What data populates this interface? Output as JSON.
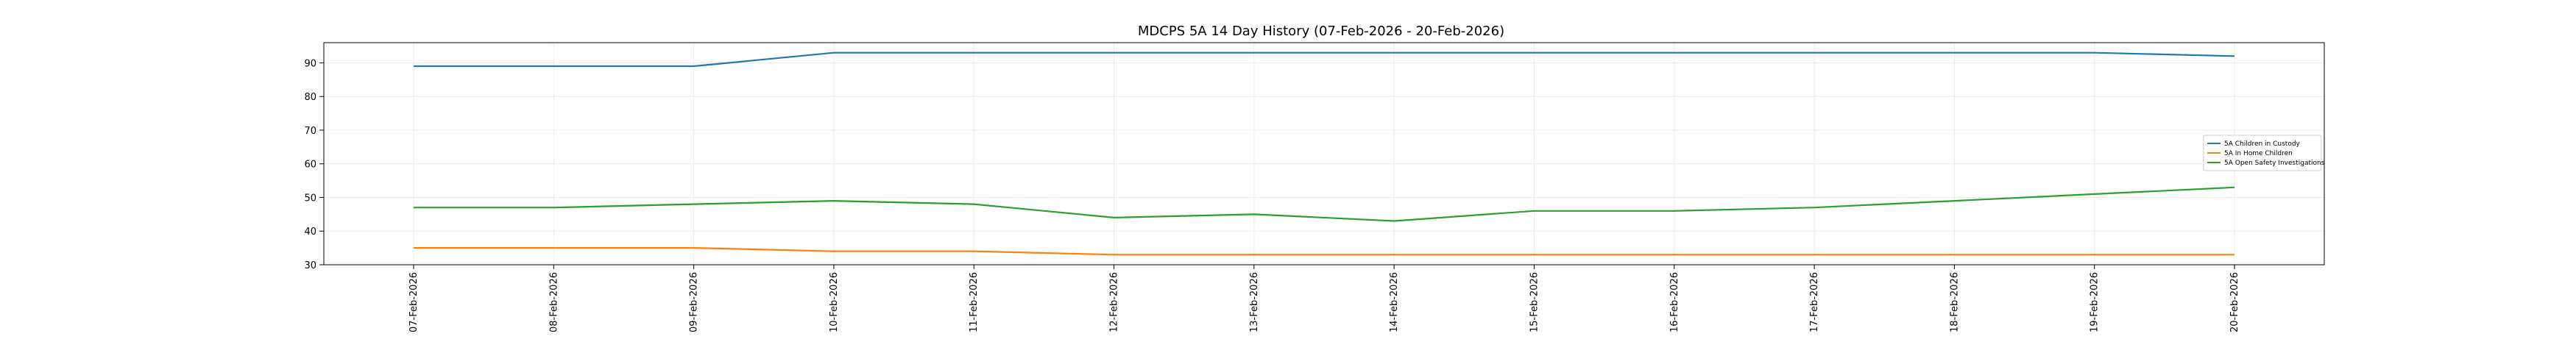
{
  "chart_data": {
    "type": "line",
    "title": "MDCPS 5A 14 Day History (07-Feb-2026 - 20-Feb-2026)",
    "xlabel": "",
    "ylabel": "",
    "categories": [
      "07-Feb-2026",
      "08-Feb-2026",
      "09-Feb-2026",
      "10-Feb-2026",
      "11-Feb-2026",
      "12-Feb-2026",
      "13-Feb-2026",
      "14-Feb-2026",
      "15-Feb-2026",
      "16-Feb-2026",
      "17-Feb-2026",
      "18-Feb-2026",
      "19-Feb-2026",
      "20-Feb-2026"
    ],
    "ylim": [
      30,
      96
    ],
    "yticks": [
      30,
      40,
      50,
      60,
      70,
      80,
      90
    ],
    "grid": true,
    "legend_position": "center-right",
    "series": [
      {
        "name": "5A Children in Custody",
        "color": "#1f77b4",
        "values": [
          89,
          89,
          89,
          93,
          93,
          93,
          93,
          93,
          93,
          93,
          93,
          93,
          93,
          92
        ]
      },
      {
        "name": "5A In Home Children",
        "color": "#ff7f0e",
        "values": [
          35,
          35,
          35,
          34,
          34,
          33,
          33,
          33,
          33,
          33,
          33,
          33,
          33,
          33
        ]
      },
      {
        "name": "5A Open Safety Investigations",
        "color": "#2ca02c",
        "values": [
          47,
          47,
          48,
          49,
          48,
          44,
          45,
          43,
          46,
          46,
          47,
          49,
          51,
          53
        ]
      }
    ]
  }
}
